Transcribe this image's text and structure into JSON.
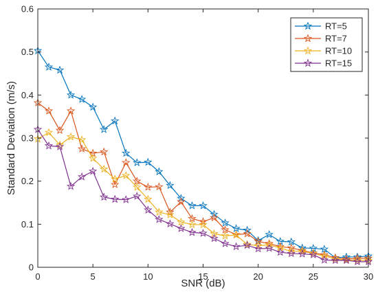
{
  "chart_data": {
    "type": "line",
    "title": "",
    "xlabel": "SNR (dB)",
    "ylabel": "Standard Deviation (m/s)",
    "xlim": [
      0,
      30
    ],
    "ylim": [
      0,
      0.6
    ],
    "xticks": [
      0,
      5,
      10,
      15,
      20,
      25,
      30
    ],
    "yticks": [
      0,
      0.1,
      0.2,
      0.3,
      0.4,
      0.5,
      0.6
    ],
    "xtick_labels": [
      "0",
      "5",
      "10",
      "15",
      "20",
      "25",
      "30"
    ],
    "ytick_labels": [
      "0",
      "0.1",
      "0.2",
      "0.3",
      "0.4",
      "0.5",
      "0.6"
    ],
    "grid": false,
    "legend_position": "top-right",
    "marker": "star",
    "x": [
      0,
      1,
      2,
      3,
      4,
      5,
      6,
      7,
      8,
      9,
      10,
      11,
      12,
      13,
      14,
      15,
      16,
      17,
      18,
      19,
      20,
      21,
      22,
      23,
      24,
      25,
      26,
      27,
      28,
      29,
      30
    ],
    "series": [
      {
        "name": "RT=5",
        "color": "#0072BD",
        "values": [
          0.503,
          0.465,
          0.458,
          0.4,
          0.39,
          0.372,
          0.32,
          0.34,
          0.265,
          0.243,
          0.244,
          0.222,
          0.19,
          0.16,
          0.143,
          0.143,
          0.123,
          0.103,
          0.09,
          0.086,
          0.062,
          0.076,
          0.06,
          0.059,
          0.045,
          0.044,
          0.042,
          0.022,
          0.024,
          0.024,
          0.026
        ]
      },
      {
        "name": "RT=7",
        "color": "#D95319",
        "values": [
          0.382,
          0.363,
          0.318,
          0.363,
          0.275,
          0.265,
          0.268,
          0.192,
          0.243,
          0.2,
          0.186,
          0.187,
          0.128,
          0.152,
          0.113,
          0.106,
          0.115,
          0.087,
          0.076,
          0.078,
          0.06,
          0.055,
          0.048,
          0.045,
          0.039,
          0.033,
          0.029,
          0.022,
          0.019,
          0.021,
          0.021
        ]
      },
      {
        "name": "RT=10",
        "color": "#EDB120",
        "values": [
          0.298,
          0.313,
          0.284,
          0.303,
          0.296,
          0.253,
          0.228,
          0.205,
          0.213,
          0.186,
          0.158,
          0.128,
          0.122,
          0.105,
          0.099,
          0.099,
          0.078,
          0.073,
          0.075,
          0.053,
          0.05,
          0.052,
          0.045,
          0.037,
          0.037,
          0.032,
          0.026,
          0.019,
          0.017,
          0.016,
          0.016
        ]
      },
      {
        "name": "RT=15",
        "color": "#7E2F8E",
        "values": [
          0.32,
          0.282,
          0.28,
          0.188,
          0.21,
          0.223,
          0.163,
          0.158,
          0.157,
          0.165,
          0.133,
          0.111,
          0.101,
          0.09,
          0.081,
          0.079,
          0.067,
          0.055,
          0.048,
          0.051,
          0.043,
          0.044,
          0.035,
          0.032,
          0.031,
          0.029,
          0.017,
          0.016,
          0.016,
          0.013,
          0.013
        ]
      }
    ]
  }
}
